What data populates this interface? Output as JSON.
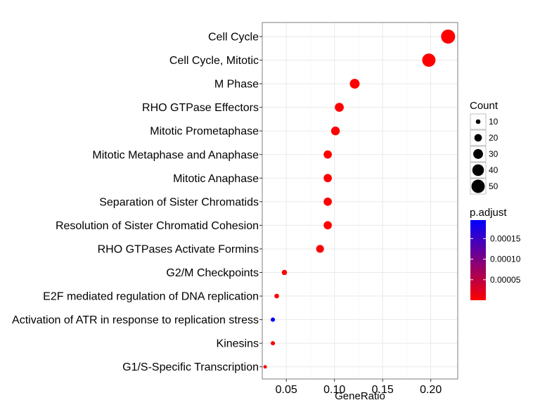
{
  "chart_data": {
    "type": "scatter",
    "xlabel": "GeneRatio",
    "ylabel": "",
    "xlim": [
      0.025,
      0.228
    ],
    "xticks": [
      0.05,
      0.1,
      0.15,
      0.2
    ],
    "xtick_labels": [
      "0.05",
      "0.10",
      "0.15",
      "0.20"
    ],
    "grid": true,
    "legend_position": "right",
    "categories": [
      "Cell Cycle",
      "Cell Cycle, Mitotic",
      "M Phase",
      "RHO GTPase Effectors",
      "Mitotic Prometaphase",
      "Mitotic Metaphase and Anaphase",
      "Mitotic Anaphase",
      "Separation of Sister Chromatids",
      "Resolution of Sister Chromatid Cohesion",
      "RHO GTPases Activate Formins",
      "G2/M Checkpoints",
      "E2F mediated regulation of DNA replication",
      "Activation of ATR in response to replication stress",
      "Kinesins",
      "G1/S-Specific Transcription"
    ],
    "points": [
      {
        "category": "Cell Cycle",
        "gene_ratio": 0.218,
        "count": 55,
        "p_adjust": 1e-07
      },
      {
        "category": "Cell Cycle, Mitotic",
        "gene_ratio": 0.198,
        "count": 50,
        "p_adjust": 1e-07
      },
      {
        "category": "M Phase",
        "gene_ratio": 0.121,
        "count": 30,
        "p_adjust": 5e-07
      },
      {
        "category": "RHO GTPase Effectors",
        "gene_ratio": 0.105,
        "count": 26,
        "p_adjust": 1e-06
      },
      {
        "category": "Mitotic Prometaphase",
        "gene_ratio": 0.101,
        "count": 25,
        "p_adjust": 1e-06
      },
      {
        "category": "Mitotic Metaphase and Anaphase",
        "gene_ratio": 0.093,
        "count": 23,
        "p_adjust": 1e-06
      },
      {
        "category": "Mitotic Anaphase",
        "gene_ratio": 0.093,
        "count": 23,
        "p_adjust": 1e-06
      },
      {
        "category": "Separation of Sister Chromatids",
        "gene_ratio": 0.093,
        "count": 23,
        "p_adjust": 1e-06
      },
      {
        "category": "Resolution of Sister Chromatid Cohesion",
        "gene_ratio": 0.093,
        "count": 23,
        "p_adjust": 1e-06
      },
      {
        "category": "RHO GTPases Activate Formins",
        "gene_ratio": 0.085,
        "count": 21,
        "p_adjust": 2e-06
      },
      {
        "category": "G2/M Checkpoints",
        "gene_ratio": 0.048,
        "count": 12,
        "p_adjust": 2e-06
      },
      {
        "category": "E2F mediated regulation of DNA replication",
        "gene_ratio": 0.04,
        "count": 10,
        "p_adjust": 2e-06
      },
      {
        "category": "Activation of ATR in response to replication stress",
        "gene_ratio": 0.036,
        "count": 9,
        "p_adjust": 0.000195
      },
      {
        "category": "Kinesins",
        "gene_ratio": 0.036,
        "count": 9,
        "p_adjust": 2e-06
      },
      {
        "category": "G1/S-Specific Transcription",
        "gene_ratio": 0.028,
        "count": 7,
        "p_adjust": 2e-06
      }
    ],
    "size_legend": {
      "title": "Count",
      "values": [
        10,
        20,
        30,
        40,
        50
      ],
      "labels": [
        "10",
        "20",
        "30",
        "40",
        "50"
      ]
    },
    "color_legend": {
      "title": "p.adjust",
      "min": 1e-07,
      "max": 0.000195,
      "ticks": [
        5e-05,
        0.0001,
        0.00015
      ],
      "tick_labels": [
        "0.00005",
        "0.00010",
        "0.00015"
      ],
      "low_color": "#ff0000",
      "high_color": "#0000ff"
    }
  }
}
